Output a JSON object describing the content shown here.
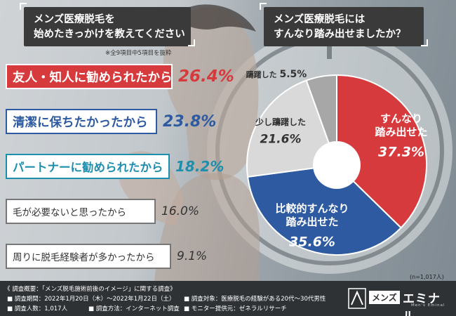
{
  "left_title": {
    "line1": "メンズ医療脱毛を",
    "line2": "始めたきっかけを教えてください"
  },
  "left_note": "※全9項目中5項目を抜粋",
  "right_title": {
    "line1": "メンズ医療脱毛には",
    "line2": "すんなり踏み出せましたか？"
  },
  "sample_note": "(n=1,017人)",
  "colors": {
    "red": "#d63a3c",
    "blue": "#2d5aa0",
    "teal": "#1d8fae",
    "light_gray": "#d9d9d9",
    "dark_gray": "#a7a7a7",
    "footer": "#2f3235"
  },
  "chart_data": [
    {
      "type": "bar",
      "categories": [
        "友人・知人に勧められたから",
        "清潔に保ちたかったから",
        "パートナーに勧められたから",
        "毛が必要ないと思ったから",
        "周りに脱毛経験者が多かったから"
      ],
      "values": [
        26.4,
        23.8,
        18.2,
        16.0,
        9.1
      ],
      "value_labels": [
        "26.4%",
        "23.8%",
        "18.2%",
        "16.0%",
        "9.1%"
      ]
    },
    {
      "type": "pie",
      "donut": true,
      "categories": [
        "すんなり踏み出せた",
        "比較的すんなり踏み出せた",
        "少し躊躇した",
        "躊躇した"
      ],
      "label_lines": [
        [
          "すんなり",
          "踏み出せた"
        ],
        [
          "比較的すんなり",
          "踏み出せた"
        ],
        [
          "少し躊躇した"
        ],
        [
          "躊躇した"
        ]
      ],
      "values": [
        37.3,
        35.6,
        21.6,
        5.5
      ],
      "value_labels": [
        "37.3%",
        "35.6%",
        "21.6%",
        "5.5%"
      ],
      "colors": [
        "#d63a3c",
        "#2d5aa0",
        "#d9d9d9",
        "#a7a7a7"
      ]
    }
  ],
  "footer": {
    "survey_title": "《 調査概要：「メンズ脱毛施術前後のイメージ」に関する調査》",
    "period": "■ 調査期間：2022年1月20日（木）～2022年1月22日（土）",
    "target": "■ 調査対象：医療脱毛の経験がある20代～30代男性",
    "people": "■ 調査人数：1,017人",
    "method": "■ 調査方法：インターネット調査",
    "provider": "■ モニター提供元：ゼネラルリサーチ"
  },
  "logo": {
    "brand_a": "メンズ",
    "brand_b": "エミナル",
    "sub": "Men's Eminal"
  }
}
